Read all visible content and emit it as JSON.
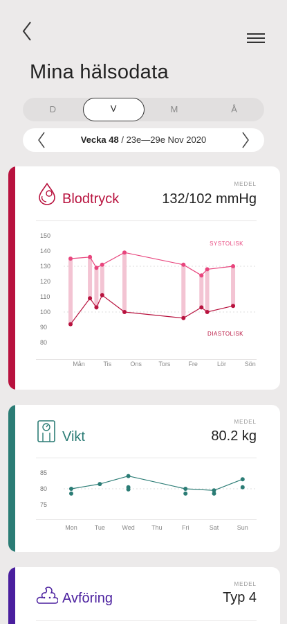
{
  "header": {
    "title": "Mina hälsodata"
  },
  "period_tabs": [
    {
      "label": "D",
      "active": false
    },
    {
      "label": "V",
      "active": true
    },
    {
      "label": "M",
      "active": false
    },
    {
      "label": "Å",
      "active": false
    }
  ],
  "week_nav": {
    "week": "Vecka 48",
    "range": " / 23e—29e Nov 2020"
  },
  "colors": {
    "blood": "#b8123e",
    "blood_line": "#e8457d",
    "weight": "#2b7c75",
    "stool": "#4a1f9e"
  },
  "cards": {
    "blood_pressure": {
      "title": "Blodtryck",
      "medel_label": "MEDEL",
      "value": "132/102 mmHg"
    },
    "weight": {
      "title": "Vikt",
      "medel_label": "MEDEL",
      "value": "80.2 kg"
    },
    "stool": {
      "title": "Avföring",
      "medel_label": "MEDEL",
      "value": "Typ 4"
    }
  },
  "chart_data": [
    {
      "type": "line",
      "title": "Blodtryck",
      "categories": [
        "Mån",
        "Tis",
        "Ons",
        "Tors",
        "Fre",
        "Lör",
        "Sön"
      ],
      "y_ticks": [
        150,
        140,
        130,
        120,
        110,
        100,
        90,
        80
      ],
      "ylim": [
        80,
        150
      ],
      "reference_lines": [
        130,
        100
      ],
      "annotations": [
        "SYSTOLISK",
        "DIASTOLISK"
      ],
      "series": [
        {
          "name": "SYSTOLISK",
          "points": [
            [
              0,
              135
            ],
            [
              1.35,
              136
            ],
            [
              1.8,
              129
            ],
            [
              2.2,
              131
            ],
            [
              3.75,
              139
            ],
            [
              7.85,
              131
            ],
            [
              9.1,
              124
            ],
            [
              9.5,
              128
            ],
            [
              11.3,
              130
            ]
          ]
        },
        {
          "name": "DIASTOLISK",
          "points": [
            [
              0,
              92
            ],
            [
              1.35,
              109
            ],
            [
              1.8,
              103
            ],
            [
              2.2,
              111
            ],
            [
              3.75,
              100
            ],
            [
              7.85,
              96
            ],
            [
              9.1,
              103
            ],
            [
              9.5,
              100
            ],
            [
              11.3,
              104
            ]
          ]
        }
      ]
    },
    {
      "type": "line",
      "title": "Vikt",
      "categories": [
        "Mon",
        "Tue",
        "Wed",
        "Thu",
        "Fri",
        "Sat",
        "Sun"
      ],
      "y_ticks": [
        85,
        80,
        75
      ],
      "ylim": [
        75,
        85
      ],
      "reference_lines": [
        80
      ],
      "series": [
        {
          "name": "",
          "points": [
            [
              0,
              80
            ],
            [
              1,
              81.5
            ],
            [
              2,
              84
            ],
            [
              4,
              80
            ],
            [
              5,
              79.5
            ],
            [
              6,
              83
            ]
          ]
        }
      ],
      "extra_points": [
        [
          0,
          78.5
        ],
        [
          2,
          80.5
        ],
        [
          2,
          79.8
        ],
        [
          4,
          78.5
        ],
        [
          5,
          78.5
        ],
        [
          6,
          80.5
        ]
      ]
    }
  ]
}
